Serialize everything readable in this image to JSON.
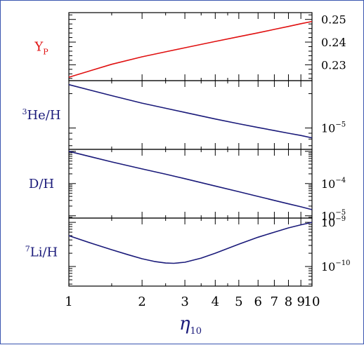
{
  "chart_data": {
    "type": "line",
    "x_axis": {
      "label_symbol": "η",
      "label_subscript": "10",
      "scale": "log",
      "range": [
        1,
        10
      ],
      "ticks": [
        {
          "value": 1,
          "label": "1"
        },
        {
          "value": 2,
          "label": "2"
        },
        {
          "value": 3,
          "label": "3"
        },
        {
          "value": 4,
          "label": "4"
        },
        {
          "value": 5,
          "label": "5"
        },
        {
          "value": 6,
          "label": "6"
        },
        {
          "value": 7,
          "label": "7"
        },
        {
          "value": 8,
          "label": "8"
        },
        {
          "value": 9,
          "label": "9"
        },
        {
          "value": 10,
          "label": "10"
        }
      ]
    },
    "panels": [
      {
        "name": "Yp",
        "label_main": "Y",
        "label_sub": "P",
        "label_sup": "",
        "color": "#e01010",
        "y_scale": "linear",
        "ylim": [
          0.223,
          0.253
        ],
        "y_ticks": [
          {
            "value": 0.25,
            "label": "0.25",
            "exp": ""
          },
          {
            "value": 0.24,
            "label": "0.24",
            "exp": ""
          },
          {
            "value": 0.23,
            "label": "0.23",
            "exp": ""
          }
        ],
        "series": {
          "x": [
            1,
            1.5,
            2,
            2.5,
            3,
            4,
            5,
            6,
            7,
            8,
            9,
            10
          ],
          "y": [
            0.2245,
            0.2302,
            0.2335,
            0.2357,
            0.2375,
            0.2403,
            0.2424,
            0.2441,
            0.2456,
            0.2469,
            0.2481,
            0.2491
          ]
        }
      },
      {
        "name": "He3/H",
        "label_main": "He/H",
        "label_sub": "",
        "label_sup": "3",
        "color": "#1a1a7a",
        "y_scale": "log",
        "ylim": [
          6.5e-06,
          2.6e-05
        ],
        "y_ticks": [
          {
            "value": 1e-05,
            "label": "10",
            "exp": "−5"
          }
        ],
        "series": {
          "x": [
            1,
            1.5,
            2,
            2.5,
            3,
            4,
            5,
            6,
            7,
            8,
            9,
            10
          ],
          "y": [
            2.4e-05,
            1.92e-05,
            1.65e-05,
            1.49e-05,
            1.37e-05,
            1.2e-05,
            1.09e-05,
            1.01e-05,
            9.5e-06,
            9e-06,
            8.6e-06,
            8.2e-06
          ]
        }
      },
      {
        "name": "D/H",
        "label_main": "D/H",
        "label_sub": "",
        "label_sup": "",
        "color": "#1a1a7a",
        "y_scale": "log",
        "ylim": [
          8.5e-06,
          0.00115
        ],
        "y_ticks": [
          {
            "value": 0.0001,
            "label": "10",
            "exp": "−4"
          },
          {
            "value": 1e-05,
            "label": "10",
            "exp": "−5"
          }
        ],
        "series": {
          "x": [
            1,
            1.5,
            2,
            2.5,
            3,
            4,
            5,
            6,
            7,
            8,
            9,
            10
          ],
          "y": [
            0.001,
            0.00047,
            0.000285,
            0.000195,
            0.000142,
            8.4e-05,
            5.6e-05,
            4e-05,
            3e-05,
            2.35e-05,
            1.9e-05,
            1.55e-05
          ]
        }
      },
      {
        "name": "Li7/H",
        "label_main": "Li/H",
        "label_sub": "",
        "label_sup": "7",
        "color": "#1a1a7a",
        "y_scale": "log",
        "ylim": [
          3.6e-11,
          1.25e-09
        ],
        "y_ticks": [
          {
            "value": 1e-09,
            "label": "10",
            "exp": "−9"
          },
          {
            "value": 1e-10,
            "label": "10",
            "exp": "−10"
          }
        ],
        "series": {
          "x": [
            1,
            1.25,
            1.5,
            1.75,
            2,
            2.25,
            2.5,
            2.7,
            3,
            3.5,
            4,
            5,
            6,
            7,
            8,
            9,
            10
          ],
          "y": [
            5e-10,
            3.3e-10,
            2.4e-10,
            1.85e-10,
            1.5e-10,
            1.3e-10,
            1.2e-10,
            1.18e-10,
            1.25e-10,
            1.55e-10,
            2e-10,
            3.2e-10,
            4.6e-10,
            6e-10,
            7.5e-10,
            8.8e-10,
            1e-09
          ]
        }
      }
    ]
  }
}
